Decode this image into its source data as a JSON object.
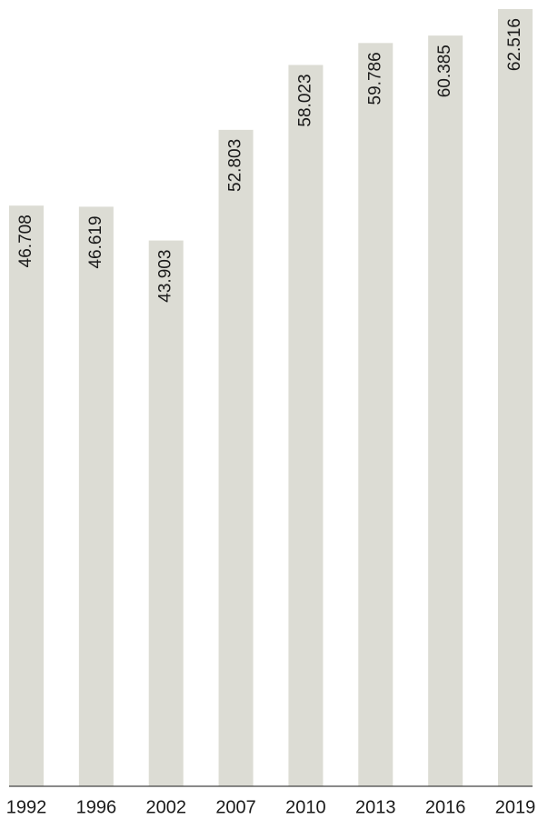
{
  "chart_data": {
    "type": "bar",
    "categories": [
      "1992",
      "1996",
      "2002",
      "2007",
      "2010",
      "2013",
      "2016",
      "2019"
    ],
    "values": [
      46.708,
      46.619,
      43.903,
      52.803,
      58.023,
      59.786,
      60.385,
      62.516
    ],
    "color": "#dcdcd4",
    "grid": false
  }
}
